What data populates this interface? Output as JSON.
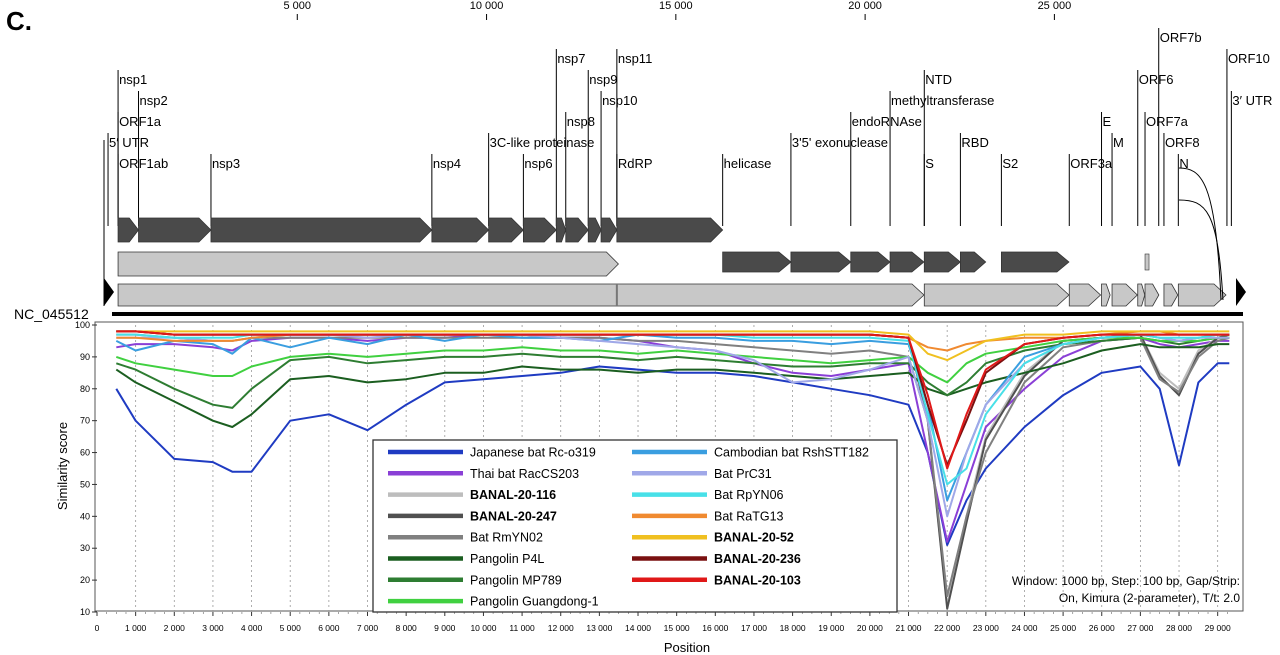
{
  "panel_label": "C.",
  "genome": {
    "accession": "NC_045512",
    "length": 29903,
    "top_ticks": [
      {
        "pos": 5000,
        "label": "5 000"
      },
      {
        "pos": 10000,
        "label": "10 000"
      },
      {
        "pos": 15000,
        "label": "15 000"
      },
      {
        "pos": 20000,
        "label": "20 000"
      },
      {
        "pos": 25000,
        "label": "25 000"
      }
    ],
    "features": [
      {
        "label": "5′ UTR",
        "pos": 1,
        "row": 4
      },
      {
        "label": "ORF1a",
        "pos": 266,
        "row": 5
      },
      {
        "label": "nsp1",
        "pos": 266,
        "row": 7
      },
      {
        "label": "nsp2",
        "pos": 806,
        "row": 6
      },
      {
        "label": "ORF1ab",
        "pos": 266,
        "row": 3
      },
      {
        "label": "nsp3",
        "pos": 2720,
        "row": 3
      },
      {
        "label": "nsp4",
        "pos": 8555,
        "row": 3
      },
      {
        "label": "3C-like proteinase",
        "pos": 10055,
        "row": 4
      },
      {
        "label": "nsp6",
        "pos": 10973,
        "row": 3
      },
      {
        "label": "nsp7",
        "pos": 11843,
        "row": 8
      },
      {
        "label": "nsp8",
        "pos": 12092,
        "row": 5
      },
      {
        "label": "nsp9",
        "pos": 12686,
        "row": 7
      },
      {
        "label": "nsp10",
        "pos": 13025,
        "row": 6
      },
      {
        "label": "nsp11",
        "pos": 13442,
        "row": 8
      },
      {
        "label": "RdRP",
        "pos": 13442,
        "row": 3
      },
      {
        "label": "helicase",
        "pos": 16237,
        "row": 3
      },
      {
        "label": "3'5' exonuclease",
        "pos": 18040,
        "row": 4
      },
      {
        "label": "endoRNAse",
        "pos": 19621,
        "row": 5
      },
      {
        "label": "methyltransferase",
        "pos": 20659,
        "row": 6
      },
      {
        "label": "NTD",
        "pos": 21563,
        "row": 7
      },
      {
        "label": "S",
        "pos": 21563,
        "row": 3
      },
      {
        "label": "RBD",
        "pos": 22517,
        "row": 4
      },
      {
        "label": "S2",
        "pos": 23600,
        "row": 3
      },
      {
        "label": "ORF3a",
        "pos": 25393,
        "row": 3
      },
      {
        "label": "E",
        "pos": 26245,
        "row": 5
      },
      {
        "label": "M",
        "pos": 26523,
        "row": 4
      },
      {
        "label": "ORF6",
        "pos": 27202,
        "row": 7
      },
      {
        "label": "ORF7a",
        "pos": 27394,
        "row": 5
      },
      {
        "label": "ORF7b",
        "pos": 27756,
        "row": 9
      },
      {
        "label": "ORF8",
        "pos": 27894,
        "row": 4
      },
      {
        "label": "ORF10",
        "pos": 29558,
        "row": 8
      },
      {
        "label": "3′ UTR",
        "pos": 29675,
        "row": 6
      },
      {
        "label": "N",
        "pos": 28274,
        "row": 3
      }
    ]
  },
  "chart_data": {
    "type": "line",
    "xlabel": "Position",
    "ylabel": "Similarity score",
    "xlim": [
      0,
      29500
    ],
    "ylim": [
      10,
      100
    ],
    "x_ticks": [
      0,
      1000,
      2000,
      3000,
      4000,
      5000,
      6000,
      7000,
      8000,
      9000,
      10000,
      11000,
      12000,
      13000,
      14000,
      15000,
      16000,
      17000,
      18000,
      19000,
      20000,
      21000,
      22000,
      23000,
      24000,
      25000,
      26000,
      27000,
      28000,
      29000
    ],
    "x_tick_labels": [
      "0",
      "1 000",
      "2 000",
      "3 000",
      "4 000",
      "5 000",
      "6 000",
      "7 000",
      "8 000",
      "9 000",
      "10 000",
      "11 000",
      "12 000",
      "13 000",
      "14 000",
      "15 000",
      "16 000",
      "17 000",
      "18 000",
      "19 000",
      "20 000",
      "21 000",
      "22 000",
      "23 000",
      "24 000",
      "25 000",
      "26 000",
      "27 000",
      "28 000",
      "29 000"
    ],
    "y_ticks": [
      10,
      20,
      30,
      40,
      50,
      60,
      70,
      80,
      90,
      100
    ],
    "y_tick_labels": [
      "10",
      "20",
      "30",
      "40",
      "50",
      "60",
      "70",
      "80",
      "90",
      "100"
    ],
    "x": [
      500,
      1000,
      2000,
      3000,
      3500,
      4000,
      5000,
      6000,
      7000,
      8000,
      9000,
      10000,
      11000,
      12000,
      13000,
      14000,
      15000,
      16000,
      17000,
      18000,
      19000,
      20000,
      21000,
      21500,
      22000,
      22500,
      23000,
      24000,
      25000,
      26000,
      27000,
      27500,
      28000,
      28500,
      29000,
      29300
    ],
    "series": [
      {
        "name": "Japanese bat Rc-o319",
        "bold": false,
        "color": "#1f3bc2",
        "values": [
          80,
          70,
          58,
          57,
          54,
          54,
          70,
          72,
          67,
          75,
          82,
          83,
          84,
          85,
          87,
          86,
          85,
          85,
          84,
          82,
          80,
          78,
          75,
          60,
          31,
          45,
          55,
          68,
          78,
          85,
          87,
          80,
          56,
          82,
          88,
          88
        ]
      },
      {
        "name": "Thai bat RacCS203",
        "bold": false,
        "color": "#8a3fd6",
        "values": [
          93,
          94,
          94,
          93,
          92,
          95,
          96,
          96,
          95,
          96,
          96,
          97,
          97,
          96,
          96,
          95,
          93,
          92,
          88,
          85,
          84,
          86,
          88,
          60,
          32,
          50,
          68,
          80,
          90,
          95,
          96,
          94,
          93,
          94,
          95,
          95
        ]
      },
      {
        "name": "BANAL-20-116",
        "bold": true,
        "color": "#bdbdbd",
        "values": [
          98,
          98,
          97,
          97,
          97,
          97,
          97,
          97,
          97,
          97,
          97,
          97,
          97,
          97,
          97,
          97,
          97,
          97,
          97,
          97,
          97,
          97,
          96,
          70,
          12,
          40,
          65,
          85,
          95,
          96,
          97,
          85,
          80,
          92,
          96,
          97
        ]
      },
      {
        "name": "BANAL-20-247",
        "bold": true,
        "color": "#505050",
        "values": [
          98,
          98,
          97,
          97,
          97,
          97,
          97,
          97,
          97,
          97,
          97,
          97,
          97,
          97,
          97,
          97,
          97,
          97,
          97,
          97,
          97,
          97,
          96,
          70,
          11,
          38,
          64,
          84,
          95,
          96,
          97,
          84,
          78,
          91,
          96,
          97
        ]
      },
      {
        "name": "Bat RmYN02",
        "bold": false,
        "color": "#808080",
        "values": [
          97,
          97,
          96,
          95,
          95,
          96,
          96,
          96,
          96,
          96,
          96,
          96,
          96,
          96,
          96,
          95,
          95,
          94,
          93,
          92,
          91,
          92,
          90,
          70,
          15,
          40,
          60,
          82,
          93,
          95,
          96,
          83,
          79,
          90,
          95,
          96
        ]
      },
      {
        "name": "Pangolin P4L",
        "bold": false,
        "color": "#1b5e20",
        "values": [
          86,
          82,
          76,
          70,
          68,
          72,
          83,
          84,
          82,
          83,
          85,
          85,
          87,
          86,
          86,
          85,
          86,
          86,
          85,
          84,
          83,
          84,
          85,
          80,
          78,
          80,
          82,
          85,
          88,
          92,
          94,
          93,
          93,
          93,
          94,
          94
        ]
      },
      {
        "name": "Pangolin MP789",
        "bold": false,
        "color": "#2e7d32",
        "values": [
          88,
          86,
          80,
          75,
          74,
          80,
          89,
          90,
          88,
          89,
          90,
          90,
          91,
          90,
          90,
          89,
          90,
          89,
          88,
          87,
          87,
          88,
          88,
          82,
          78,
          82,
          88,
          92,
          94,
          95,
          96,
          95,
          94,
          95,
          96,
          96
        ]
      },
      {
        "name": "Pangolin Guangdong-1",
        "bold": false,
        "color": "#40d040",
        "values": [
          90,
          88,
          86,
          84,
          84,
          87,
          90,
          91,
          90,
          91,
          92,
          92,
          93,
          92,
          92,
          91,
          92,
          91,
          90,
          89,
          88,
          89,
          90,
          85,
          82,
          88,
          91,
          93,
          95,
          96,
          96,
          95,
          95,
          95,
          96,
          96
        ]
      },
      {
        "name": "Cambodian bat RshSTT182",
        "bold": false,
        "color": "#3a9ee0",
        "values": [
          95,
          92,
          95,
          94,
          91,
          96,
          93,
          96,
          94,
          97,
          95,
          97,
          96,
          96,
          95,
          97,
          96,
          96,
          95,
          95,
          94,
          95,
          94,
          75,
          45,
          60,
          75,
          90,
          94,
          96,
          97,
          96,
          95,
          96,
          97,
          97
        ]
      },
      {
        "name": "Bat PrC31",
        "bold": false,
        "color": "#a0a8e8",
        "values": [
          96,
          96,
          96,
          95,
          95,
          96,
          97,
          97,
          96,
          97,
          97,
          97,
          97,
          96,
          95,
          94,
          93,
          92,
          89,
          82,
          83,
          86,
          90,
          70,
          40,
          60,
          75,
          88,
          94,
          96,
          97,
          96,
          95,
          96,
          96,
          96
        ]
      },
      {
        "name": "Bat RpYN06",
        "bold": false,
        "color": "#48e0e8",
        "values": [
          97,
          97,
          96,
          96,
          96,
          97,
          97,
          97,
          97,
          97,
          97,
          97,
          97,
          97,
          97,
          97,
          97,
          97,
          96,
          96,
          96,
          96,
          95,
          72,
          50,
          55,
          72,
          88,
          94,
          96,
          97,
          96,
          96,
          96,
          97,
          97
        ]
      },
      {
        "name": "Bat RaTG13",
        "bold": false,
        "color": "#f08a30",
        "values": [
          96,
          96,
          95,
          95,
          95,
          96,
          97,
          97,
          97,
          97,
          97,
          97,
          97,
          97,
          97,
          97,
          97,
          97,
          97,
          97,
          97,
          97,
          96,
          93,
          92,
          94,
          95,
          96,
          96,
          97,
          98,
          98,
          97,
          97,
          97,
          97
        ]
      },
      {
        "name": "BANAL-20-52",
        "bold": true,
        "color": "#f0c020",
        "values": [
          98,
          98,
          98,
          98,
          98,
          98,
          98,
          98,
          98,
          98,
          98,
          98,
          98,
          98,
          98,
          98,
          98,
          98,
          98,
          98,
          98,
          98,
          97,
          91,
          89,
          92,
          95,
          97,
          97,
          98,
          98,
          98,
          98,
          98,
          98,
          98
        ]
      },
      {
        "name": "BANAL-20-236",
        "bold": true,
        "color": "#7a1010",
        "values": [
          98,
          98,
          97,
          97,
          97,
          97,
          97,
          97,
          97,
          97,
          97,
          97,
          97,
          97,
          97,
          97,
          97,
          97,
          97,
          97,
          97,
          97,
          96,
          75,
          56,
          70,
          85,
          94,
          96,
          97,
          97,
          97,
          97,
          97,
          97,
          97
        ]
      },
      {
        "name": "BANAL-20-103",
        "bold": true,
        "color": "#e01818",
        "values": [
          98,
          98,
          97,
          97,
          97,
          97,
          97,
          97,
          97,
          97,
          97,
          97,
          97,
          97,
          97,
          97,
          97,
          97,
          97,
          97,
          97,
          97,
          96,
          78,
          55,
          72,
          86,
          94,
          96,
          97,
          97,
          97,
          97,
          97,
          97,
          97
        ]
      }
    ],
    "note_lines": [
      "Window: 1000 bp, Step: 100 bp, Gap/Strip:",
      "On, Kimura (2-parameter), T/t: 2.0"
    ]
  }
}
